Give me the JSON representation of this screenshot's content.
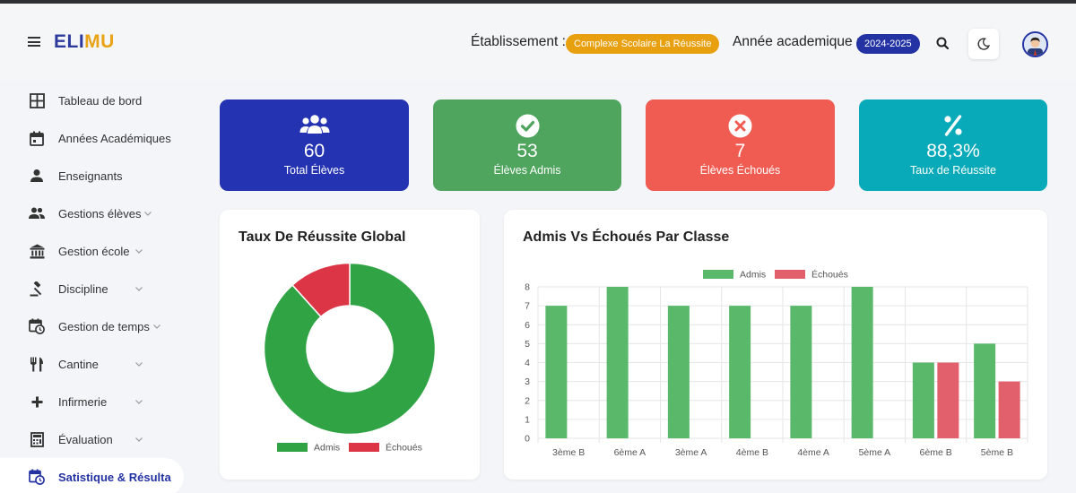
{
  "header": {
    "logo_part1": "ELI",
    "logo_part2": "MU",
    "etablissement_label": "Établissement :",
    "etablissement_value": "Complexe Scolaire La Réussite",
    "annee_label": "Année academique :",
    "annee_value": "2024-2025"
  },
  "sidebar": {
    "items": [
      {
        "label": "Tableau de bord",
        "icon": "dashboard-icon",
        "expandable": false
      },
      {
        "label": "Années Académiques",
        "icon": "calendar-icon",
        "expandable": false
      },
      {
        "label": "Enseignants",
        "icon": "person-icon",
        "expandable": false
      },
      {
        "label": "Gestions élèves",
        "icon": "people-icon",
        "expandable": true
      },
      {
        "label": "Gestion école",
        "icon": "institution-icon",
        "expandable": true
      },
      {
        "label": "Discipline",
        "icon": "gavel-icon",
        "expandable": true
      },
      {
        "label": "Gestion de temps",
        "icon": "schedule-icon",
        "expandable": true
      },
      {
        "label": "Cantine",
        "icon": "restaurant-icon",
        "expandable": true
      },
      {
        "label": "Infirmerie",
        "icon": "plus-icon",
        "expandable": true
      },
      {
        "label": "Évaluation",
        "icon": "calculator-icon",
        "expandable": true
      },
      {
        "label": "Satistique & Résulta",
        "icon": "statistics-icon",
        "expandable": false,
        "active": true
      }
    ]
  },
  "stats": [
    {
      "value": "60",
      "label": "Total Élèves",
      "color": "#2433b1",
      "icon": "group-icon"
    },
    {
      "value": "53",
      "label": "Élèves Admis",
      "color": "#4fa45e",
      "icon": "check-circle-icon"
    },
    {
      "value": "7",
      "label": "Élèves Échoués",
      "color": "#f05b52",
      "icon": "cancel-circle-icon"
    },
    {
      "value": "88,3%",
      "label": "Taux de Réussite",
      "color": "#08aab9",
      "icon": "percent-icon"
    }
  ],
  "donut_panel": {
    "title": "Taux De Réussite Global"
  },
  "bar_panel": {
    "title": "Admis Vs Échoués Par Classe"
  },
  "chart_data": [
    {
      "type": "pie",
      "title": "Taux De Réussite Global",
      "donut": true,
      "categories": [
        "Admis",
        "Échoués"
      ],
      "values": [
        53,
        7
      ],
      "colors": [
        "#30a444",
        "#dc3545"
      ],
      "legend": "bottom"
    },
    {
      "type": "bar",
      "title": "Admis Vs Échoués Par Classe",
      "categories": [
        "3ème B",
        "6ème A",
        "3ème A",
        "4ème B",
        "4ème A",
        "5ème A",
        "6ème B",
        "5ème B"
      ],
      "series": [
        {
          "name": "Admis",
          "values": [
            7,
            8,
            7,
            7,
            7,
            8,
            4,
            5
          ],
          "color": "#5ab86b"
        },
        {
          "name": "Échoués",
          "values": [
            0,
            0,
            0,
            0,
            0,
            0,
            4,
            3
          ],
          "color": "#e25f6c"
        }
      ],
      "ylim": [
        0,
        8
      ],
      "yticks": [
        0,
        1,
        2,
        3,
        4,
        5,
        6,
        7,
        8
      ],
      "grid": true,
      "legend": "top"
    }
  ]
}
